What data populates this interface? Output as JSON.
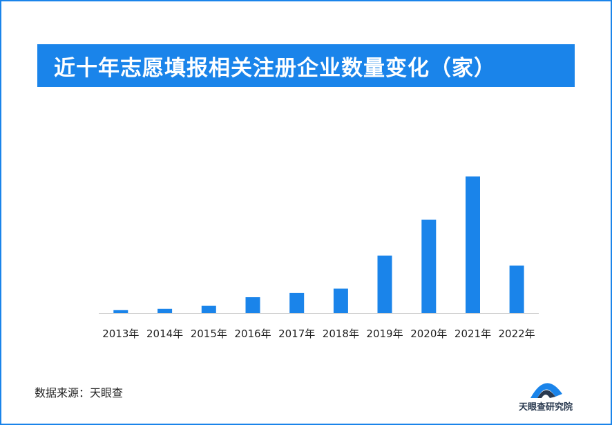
{
  "title": "近十年志愿填报相关注册企业数量变化（家）",
  "source": "数据来源：天眼查",
  "logo_text": "天眼查研究院",
  "colors": {
    "bar": "#1a84ea",
    "banner": "#1a84ea",
    "axis": "#cccccc"
  },
  "chart_data": {
    "type": "bar",
    "title": "近十年志愿填报相关注册企业数量变化（家）",
    "categories": [
      "2013年",
      "2014年",
      "2015年",
      "2016年",
      "2017年",
      "2018年",
      "2019年",
      "2020年",
      "2021年",
      "2022年"
    ],
    "values": [
      2,
      3,
      5,
      11,
      14,
      17,
      40,
      65,
      95,
      33
    ],
    "xlabel": "",
    "ylabel": "",
    "ylim": [
      0,
      100
    ],
    "grid": false,
    "legend": "none"
  }
}
